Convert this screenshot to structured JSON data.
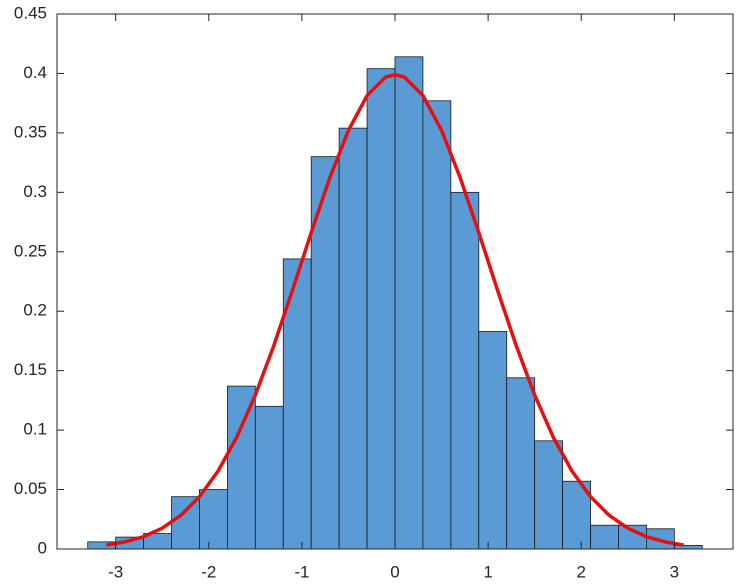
{
  "chart_data": {
    "type": "histogram",
    "bins": [
      -3.3,
      -3.0,
      -2.7,
      -2.4,
      -2.1,
      -1.8,
      -1.5,
      -1.2,
      -0.9,
      -0.6,
      -0.3,
      0,
      0.3,
      0.6,
      0.9,
      1.2,
      1.5,
      1.8,
      2.1,
      2.4,
      2.7,
      3.0,
      3.3
    ],
    "values": [
      0.006,
      0.01,
      0.013,
      0.044,
      0.05,
      0.137,
      0.12,
      0.244,
      0.33,
      0.354,
      0.404,
      0.414,
      0.377,
      0.3,
      0.183,
      0.144,
      0.091,
      0.057,
      0.02,
      0.02,
      0.017,
      0.003
    ],
    "color": "#5b9bd5",
    "overlay": {
      "type": "line",
      "color": "#e50f0f",
      "x": [
        -3.1,
        -2.9,
        -2.7,
        -2.5,
        -2.3,
        -2.1,
        -1.9,
        -1.7,
        -1.5,
        -1.3,
        -1.1,
        -0.9,
        -0.7,
        -0.5,
        -0.3,
        -0.1,
        0,
        0.1,
        0.3,
        0.5,
        0.7,
        0.9,
        1.1,
        1.3,
        1.5,
        1.7,
        1.9,
        2.1,
        2.3,
        2.5,
        2.7,
        2.9,
        3.1
      ],
      "values": [
        0.0033,
        0.006,
        0.0104,
        0.0175,
        0.0283,
        0.044,
        0.0656,
        0.094,
        0.1295,
        0.1714,
        0.2179,
        0.2661,
        0.3123,
        0.3521,
        0.3814,
        0.397,
        0.3989,
        0.397,
        0.3814,
        0.3521,
        0.3123,
        0.2661,
        0.2179,
        0.1714,
        0.1295,
        0.094,
        0.0656,
        0.044,
        0.0283,
        0.0175,
        0.0104,
        0.006,
        0.0033
      ]
    },
    "xlim": [
      -3.63,
      3.63
    ],
    "ylim": [
      0,
      0.45
    ],
    "xticks": [
      -3,
      -2,
      -1,
      0,
      1,
      2,
      3
    ],
    "yticks": [
      0,
      0.05,
      0.1,
      0.15,
      0.2,
      0.25,
      0.3,
      0.35,
      0.4,
      0.45
    ]
  }
}
